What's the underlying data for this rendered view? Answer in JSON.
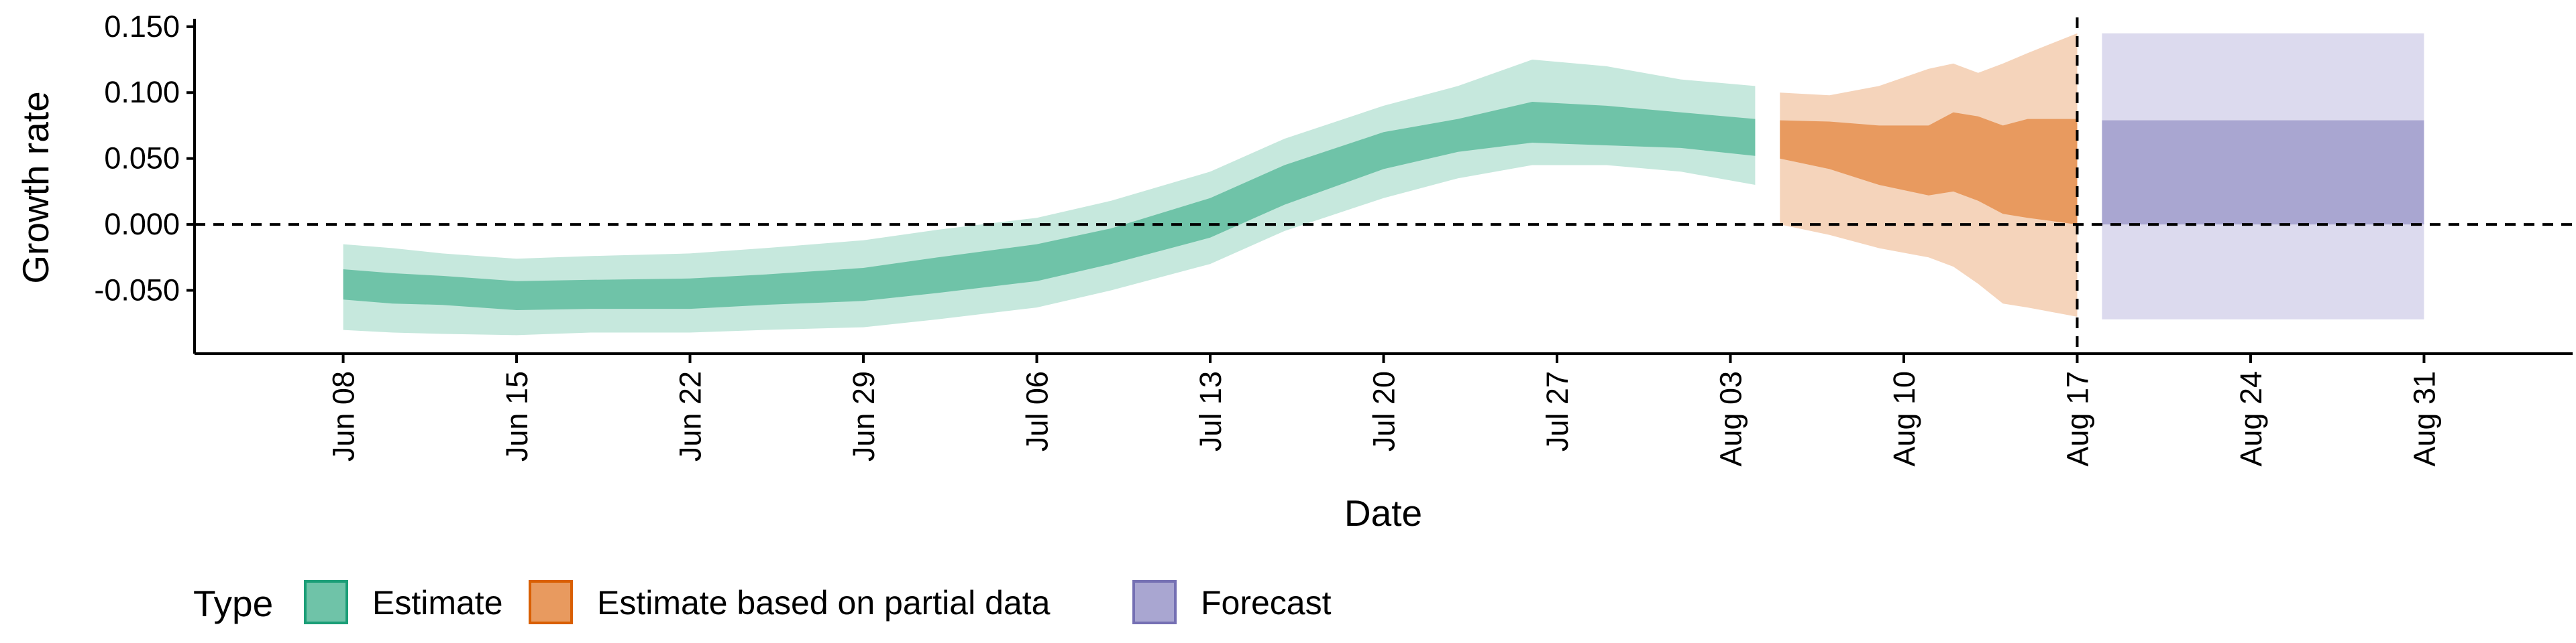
{
  "chart_data": {
    "type": "area",
    "xlabel": "Date",
    "ylabel": "Growth rate",
    "x_type": "date",
    "year": 2020,
    "xlim": [
      "2020-06-02",
      "2020-09-06"
    ],
    "ylim": [
      -0.098,
      0.156
    ],
    "y_ticks": [
      {
        "value": 0.15,
        "label": "0.150"
      },
      {
        "value": 0.1,
        "label": "0.100"
      },
      {
        "value": 0.05,
        "label": "0.050"
      },
      {
        "value": 0.0,
        "label": "0.000"
      },
      {
        "value": -0.05,
        "label": "-0.050"
      }
    ],
    "x_ticks": [
      {
        "date": "2020-06-08",
        "label": "Jun 08"
      },
      {
        "date": "2020-06-15",
        "label": "Jun 15"
      },
      {
        "date": "2020-06-22",
        "label": "Jun 22"
      },
      {
        "date": "2020-06-29",
        "label": "Jun 29"
      },
      {
        "date": "2020-07-06",
        "label": "Jul 06"
      },
      {
        "date": "2020-07-13",
        "label": "Jul 13"
      },
      {
        "date": "2020-07-20",
        "label": "Jul 20"
      },
      {
        "date": "2020-07-27",
        "label": "Jul 27"
      },
      {
        "date": "2020-08-03",
        "label": "Aug 03"
      },
      {
        "date": "2020-08-10",
        "label": "Aug 10"
      },
      {
        "date": "2020-08-17",
        "label": "Aug 17"
      },
      {
        "date": "2020-08-24",
        "label": "Aug 24"
      },
      {
        "date": "2020-08-31",
        "label": "Aug 31"
      }
    ],
    "reference_lines": {
      "horizontal_y": 0,
      "vertical_date": "2020-08-17"
    },
    "grid": false,
    "legend": {
      "title": "Type",
      "position": "bottom-left",
      "items": [
        {
          "label": "Estimate",
          "fill": "#6fc3a8",
          "stroke": "#1b9e77"
        },
        {
          "label": "Estimate based on partial data",
          "fill": "#e89a5f",
          "stroke": "#d95f02"
        },
        {
          "label": "Forecast",
          "fill": "#a9a6d1",
          "stroke": "#7570b3"
        }
      ]
    },
    "series": [
      {
        "name": "Estimate",
        "color_inner": "#6fc3a8",
        "color_outer": "#c6e8dd",
        "points": [
          {
            "date": "2020-06-08",
            "lower_90": -0.08,
            "lower_50": -0.057,
            "upper_50": -0.034,
            "upper_90": -0.015
          },
          {
            "date": "2020-06-10",
            "lower_90": -0.082,
            "lower_50": -0.06,
            "upper_50": -0.037,
            "upper_90": -0.018
          },
          {
            "date": "2020-06-12",
            "lower_90": -0.083,
            "lower_50": -0.061,
            "upper_50": -0.039,
            "upper_90": -0.022
          },
          {
            "date": "2020-06-15",
            "lower_90": -0.084,
            "lower_50": -0.065,
            "upper_50": -0.043,
            "upper_90": -0.026
          },
          {
            "date": "2020-06-18",
            "lower_90": -0.082,
            "lower_50": -0.064,
            "upper_50": -0.042,
            "upper_90": -0.024
          },
          {
            "date": "2020-06-22",
            "lower_90": -0.082,
            "lower_50": -0.064,
            "upper_50": -0.041,
            "upper_90": -0.022
          },
          {
            "date": "2020-06-25",
            "lower_90": -0.08,
            "lower_50": -0.061,
            "upper_50": -0.038,
            "upper_90": -0.018
          },
          {
            "date": "2020-06-29",
            "lower_90": -0.078,
            "lower_50": -0.058,
            "upper_50": -0.033,
            "upper_90": -0.012
          },
          {
            "date": "2020-07-02",
            "lower_90": -0.072,
            "lower_50": -0.052,
            "upper_50": -0.025,
            "upper_90": -0.004
          },
          {
            "date": "2020-07-06",
            "lower_90": -0.063,
            "lower_50": -0.043,
            "upper_50": -0.015,
            "upper_90": 0.005
          },
          {
            "date": "2020-07-09",
            "lower_90": -0.05,
            "lower_50": -0.03,
            "upper_50": -0.003,
            "upper_90": 0.018
          },
          {
            "date": "2020-07-13",
            "lower_90": -0.03,
            "lower_50": -0.01,
            "upper_50": 0.02,
            "upper_90": 0.04
          },
          {
            "date": "2020-07-16",
            "lower_90": -0.005,
            "lower_50": 0.015,
            "upper_50": 0.045,
            "upper_90": 0.065
          },
          {
            "date": "2020-07-20",
            "lower_90": 0.02,
            "lower_50": 0.042,
            "upper_50": 0.07,
            "upper_90": 0.09
          },
          {
            "date": "2020-07-23",
            "lower_90": 0.035,
            "lower_50": 0.055,
            "upper_50": 0.08,
            "upper_90": 0.105
          },
          {
            "date": "2020-07-26",
            "lower_90": 0.045,
            "lower_50": 0.062,
            "upper_50": 0.093,
            "upper_90": 0.125
          },
          {
            "date": "2020-07-29",
            "lower_90": 0.045,
            "lower_50": 0.06,
            "upper_50": 0.09,
            "upper_90": 0.12
          },
          {
            "date": "2020-08-01",
            "lower_90": 0.04,
            "lower_50": 0.058,
            "upper_50": 0.085,
            "upper_90": 0.11
          },
          {
            "date": "2020-08-04",
            "lower_90": 0.03,
            "lower_50": 0.052,
            "upper_50": 0.08,
            "upper_90": 0.105
          }
        ]
      },
      {
        "name": "Estimate based on partial data",
        "color_inner": "#e89a5f",
        "color_outer": "#f5d4bb",
        "points": [
          {
            "date": "2020-08-05",
            "lower_90": 0.0,
            "lower_50": 0.05,
            "upper_50": 0.079,
            "upper_90": 0.1
          },
          {
            "date": "2020-08-07",
            "lower_90": -0.008,
            "lower_50": 0.042,
            "upper_50": 0.078,
            "upper_90": 0.098
          },
          {
            "date": "2020-08-09",
            "lower_90": -0.018,
            "lower_50": 0.03,
            "upper_50": 0.075,
            "upper_90": 0.105
          },
          {
            "date": "2020-08-11",
            "lower_90": -0.025,
            "lower_50": 0.022,
            "upper_50": 0.075,
            "upper_90": 0.118
          },
          {
            "date": "2020-08-12",
            "lower_90": -0.032,
            "lower_50": 0.025,
            "upper_50": 0.085,
            "upper_90": 0.122
          },
          {
            "date": "2020-08-13",
            "lower_90": -0.045,
            "lower_50": 0.018,
            "upper_50": 0.082,
            "upper_90": 0.115
          },
          {
            "date": "2020-08-14",
            "lower_90": -0.06,
            "lower_50": 0.008,
            "upper_50": 0.075,
            "upper_90": 0.122
          },
          {
            "date": "2020-08-15",
            "lower_90": -0.063,
            "lower_50": 0.005,
            "upper_50": 0.08,
            "upper_90": 0.13
          },
          {
            "date": "2020-08-17",
            "lower_90": -0.07,
            "lower_50": 0.0,
            "upper_50": 0.08,
            "upper_90": 0.145
          }
        ]
      },
      {
        "name": "Forecast",
        "color_inner": "#a9a6d1",
        "color_outer": "#dcdaee",
        "points": [
          {
            "date": "2020-08-18",
            "lower_90": -0.072,
            "lower_50": 0.0,
            "upper_50": 0.079,
            "upper_90": 0.145
          },
          {
            "date": "2020-08-31",
            "lower_90": -0.072,
            "lower_50": 0.0,
            "upper_50": 0.079,
            "upper_90": 0.145
          }
        ]
      }
    ]
  }
}
